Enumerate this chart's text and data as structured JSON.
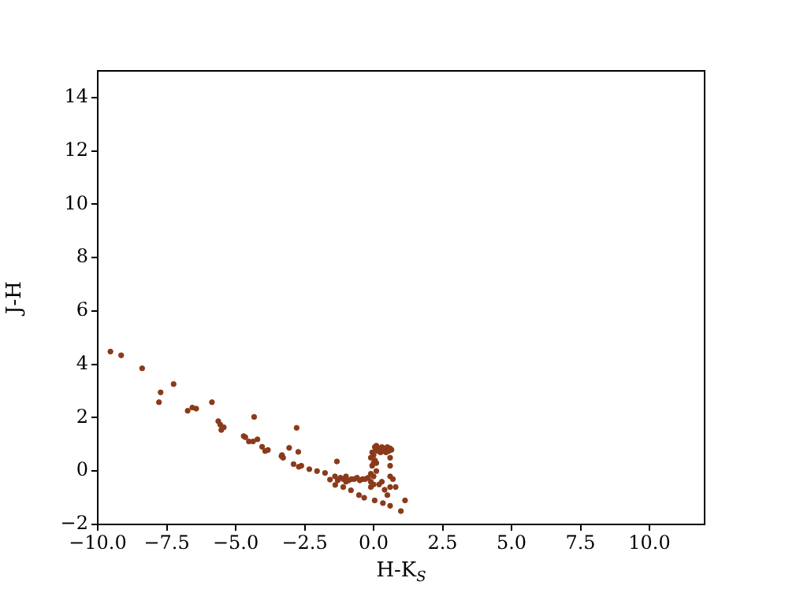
{
  "chart_data": {
    "type": "scatter",
    "xlabel": "H-K$_{S}$",
    "ylabel": "J-H",
    "xlim": [
      -10,
      12
    ],
    "ylim": [
      -2,
      15
    ],
    "xticks": [
      {
        "value": -10,
        "label": "−10.0"
      },
      {
        "value": -7.5,
        "label": "−7.5"
      },
      {
        "value": -5,
        "label": "−5.0"
      },
      {
        "value": -2.5,
        "label": "−2.5"
      },
      {
        "value": 0,
        "label": "0.0"
      },
      {
        "value": 2.5,
        "label": "2.5"
      },
      {
        "value": 5,
        "label": "5.0"
      },
      {
        "value": 7.5,
        "label": "7.5"
      },
      {
        "value": 10,
        "label": "10.0"
      }
    ],
    "yticks": [
      {
        "value": -2,
        "label": "−2"
      },
      0,
      2,
      4,
      6,
      8,
      10,
      12,
      14
    ],
    "grid": false,
    "legend": false,
    "marker": "circle",
    "series": [
      {
        "color": "#8b3a1a",
        "x": [
          -9.54,
          -9.15,
          -8.39,
          -7.25,
          -7.72,
          -7.78,
          -6.74,
          -6.57,
          -6.43,
          -5.86,
          -5.63,
          -5.56,
          -5.52,
          -5.43,
          -4.33,
          -4.71,
          -4.65,
          -4.52,
          -4.37,
          -4.21,
          -4.04,
          -3.93,
          -3.83,
          -3.32,
          -3.28,
          -3.06,
          -2.79,
          -2.73,
          -2.9,
          -2.62,
          -2.33,
          -2.05,
          -1.76,
          -1.39,
          -1.33,
          -3.34,
          -2.71,
          -1.58,
          -1.0,
          -0.82,
          -0.53,
          -0.34,
          0.04,
          0.34,
          0.6,
          0.99,
          1.14,
          -1.1,
          -1.4,
          -1.2,
          -1.0,
          -0.8,
          -0.6,
          -0.4,
          -0.2,
          -1.3,
          -1.1,
          -0.9,
          -0.7,
          -0.5,
          -0.3,
          -0.1,
          -0.1,
          0.0,
          0.1,
          -0.05,
          0.05,
          -0.1,
          0.0,
          0.1,
          -0.05,
          0.05,
          0.0,
          -0.1,
          0.1,
          0.0,
          0.05,
          0.1,
          0.2,
          0.3,
          0.4,
          0.5,
          0.6,
          0.65,
          0.15,
          0.25,
          0.35,
          0.45,
          0.55,
          0.6,
          0.6,
          0.6,
          0.6,
          0.2,
          0.3,
          0.4,
          0.5,
          0.7,
          0.8
        ],
        "values": [
          4.48,
          4.34,
          3.85,
          3.26,
          2.95,
          2.58,
          2.26,
          2.38,
          2.34,
          2.58,
          1.87,
          1.74,
          1.54,
          1.64,
          2.03,
          1.31,
          1.27,
          1.11,
          1.11,
          1.19,
          0.91,
          0.75,
          0.79,
          0.6,
          0.5,
          0.87,
          1.62,
          0.72,
          0.26,
          0.2,
          0.07,
          0.0,
          -0.07,
          -0.52,
          0.36,
          0.56,
          0.16,
          -0.32,
          -0.4,
          -0.72,
          -0.9,
          -1.0,
          -1.1,
          -1.2,
          -1.3,
          -1.5,
          -1.1,
          -0.6,
          -0.2,
          -0.25,
          -0.2,
          -0.3,
          -0.25,
          -0.3,
          -0.25,
          -0.35,
          -0.3,
          -0.35,
          -0.3,
          -0.35,
          -0.3,
          -0.6,
          -0.4,
          -0.2,
          0.0,
          0.2,
          0.4,
          0.5,
          0.6,
          0.8,
          0.7,
          0.9,
          -0.5,
          -0.1,
          0.3,
          0.3,
          0.9,
          0.95,
          0.85,
          0.9,
          0.85,
          0.9,
          0.85,
          0.8,
          0.75,
          0.7,
          0.75,
          0.7,
          0.75,
          0.5,
          0.2,
          -0.2,
          -0.6,
          -0.5,
          -0.4,
          -0.7,
          -0.9,
          -0.3,
          -0.6
        ]
      }
    ]
  }
}
